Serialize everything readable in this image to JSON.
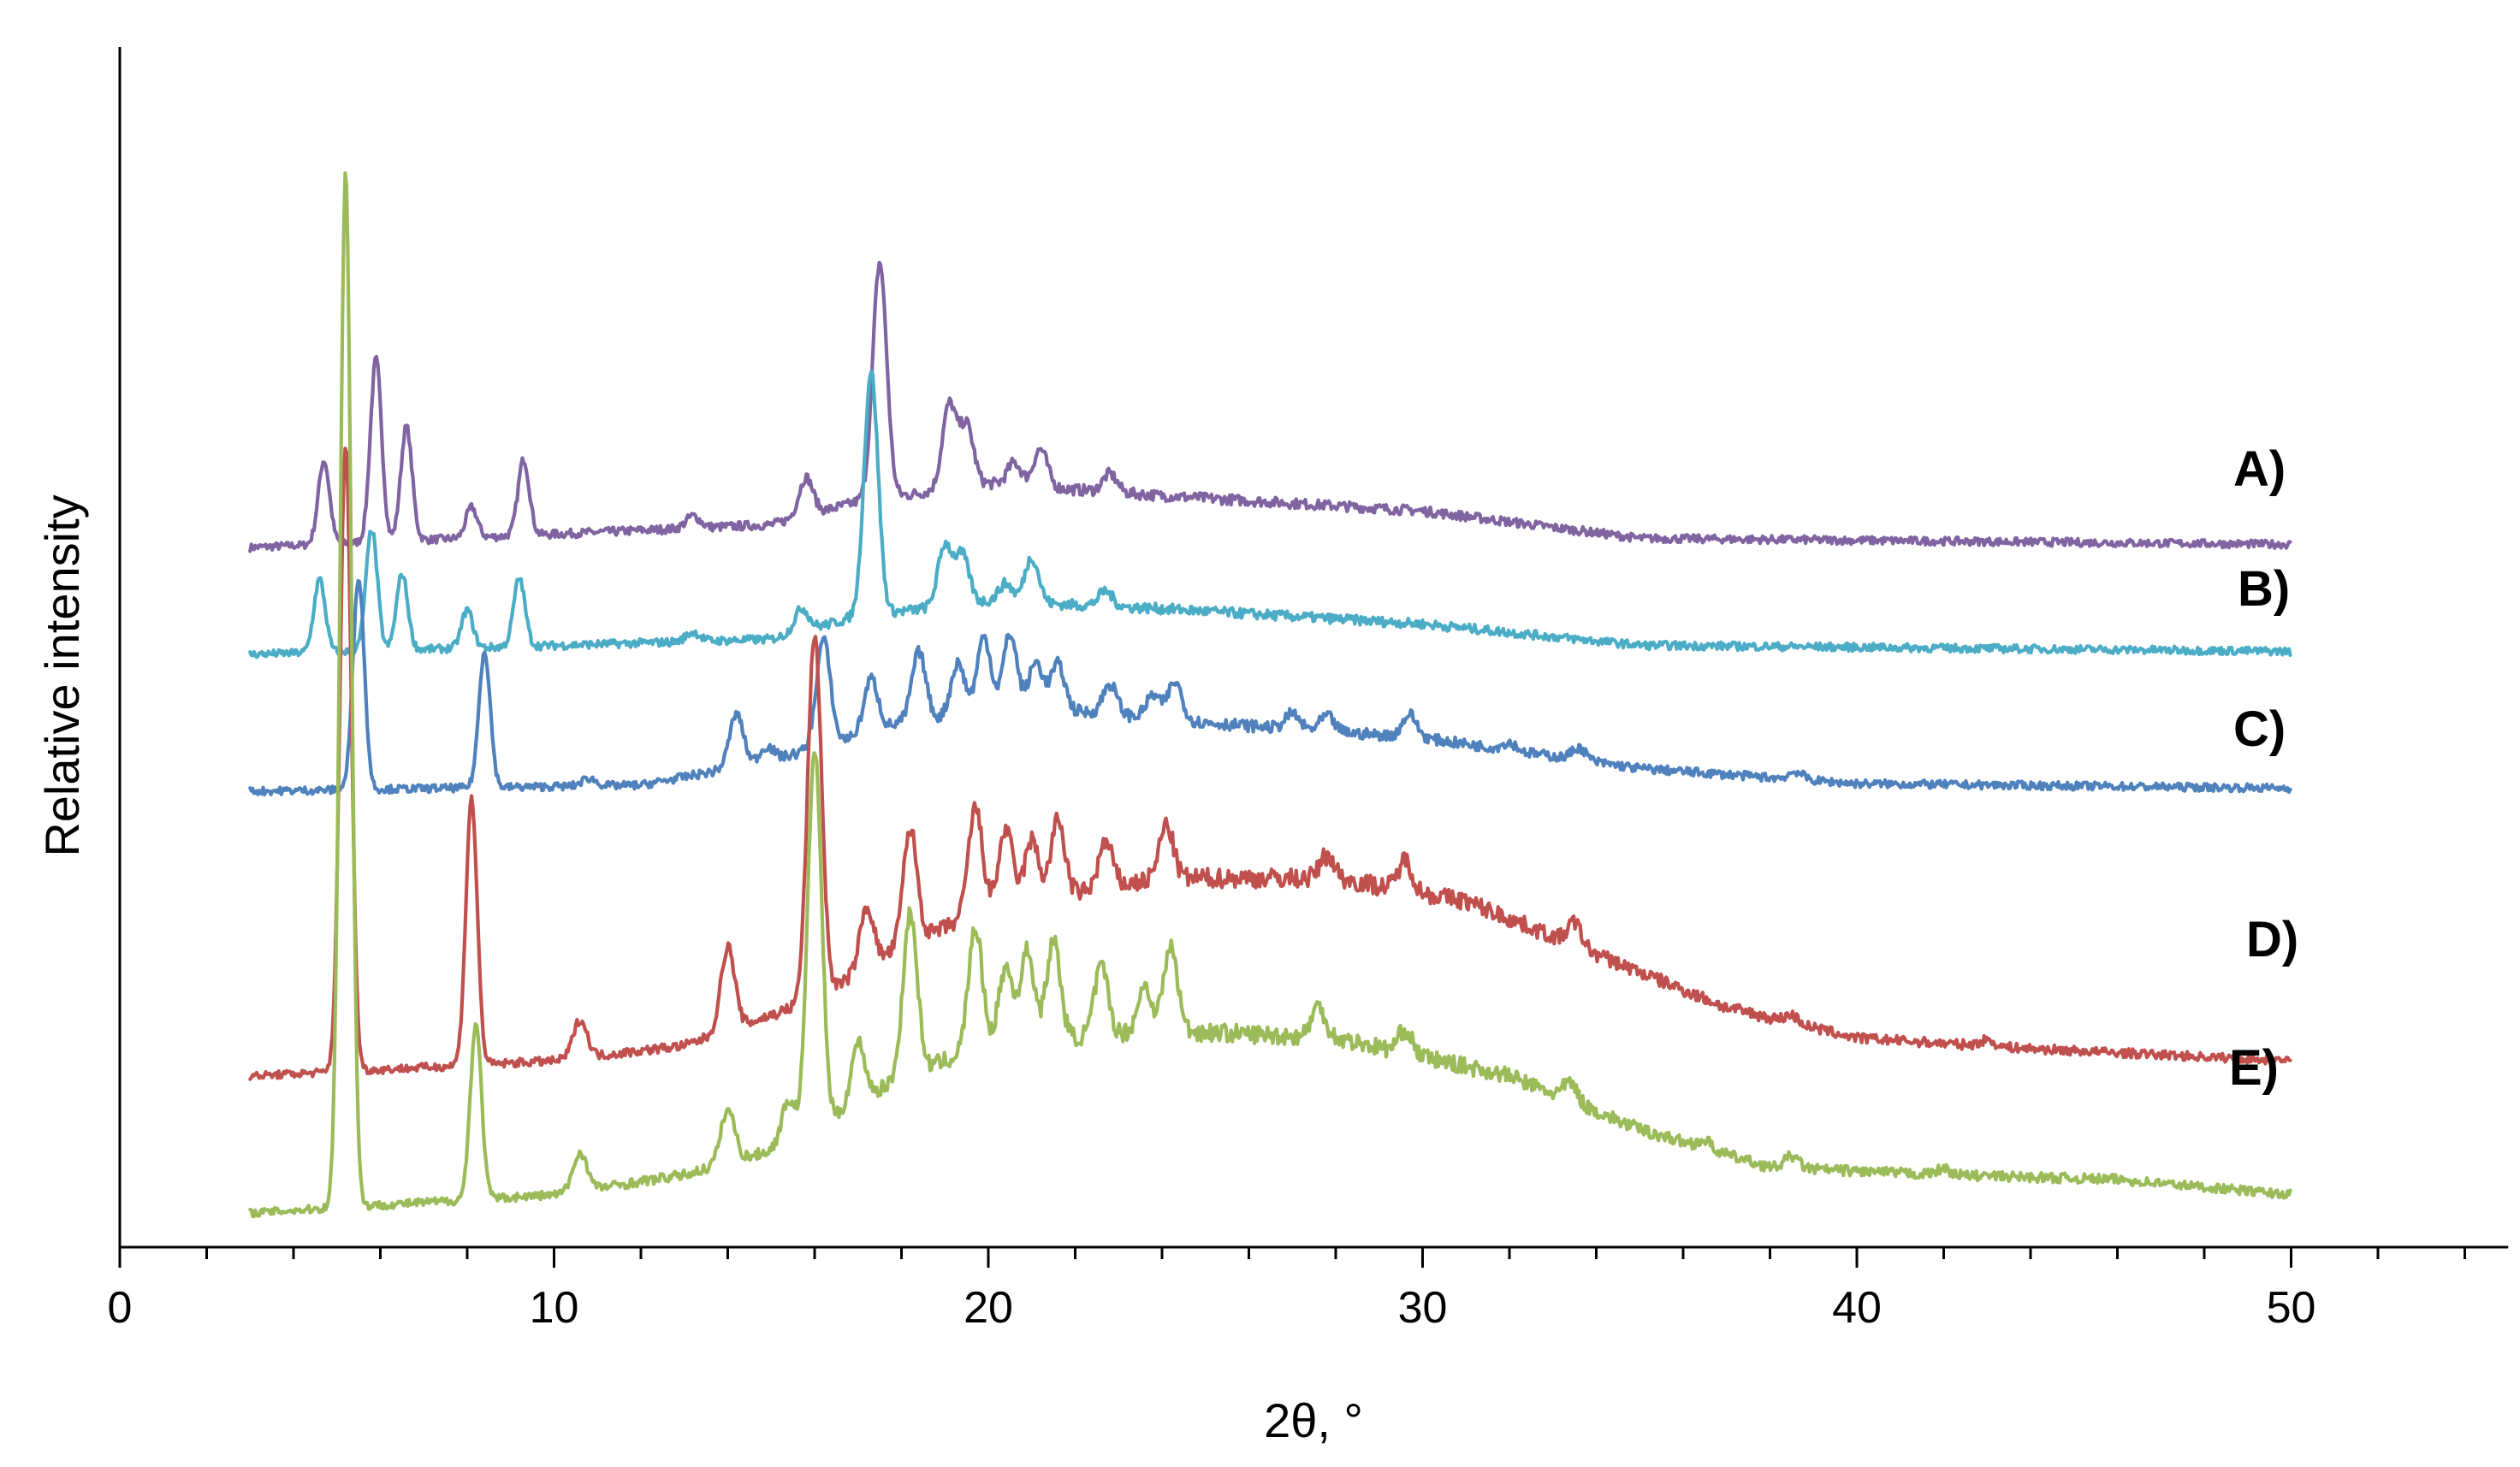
{
  "chart_data": {
    "type": "line",
    "title": "",
    "xlabel": "2θ, °",
    "ylabel": "Relative intensity",
    "xlim": [
      0,
      55
    ],
    "xticks": [
      0,
      10,
      20,
      30,
      40,
      50
    ],
    "xtick_labels": [
      "0",
      "10",
      "20",
      "30",
      "40",
      "50"
    ],
    "y_axis_ticks": false,
    "grid": false,
    "legend": "labels at right end of each trace",
    "series": [
      {
        "name": "A)",
        "color": "#8064a2",
        "x_range": [
          3,
          50
        ],
        "peaks": [
          [
            4.7,
            0.55
          ],
          [
            5.9,
            1.2
          ],
          [
            6.6,
            0.75
          ],
          [
            8.1,
            0.2
          ],
          [
            9.3,
            0.5
          ],
          [
            13.2,
            0.08
          ],
          [
            15.8,
            0.25
          ],
          [
            17.5,
            1.55
          ],
          [
            19.1,
            0.55
          ],
          [
            19.5,
            0.4
          ],
          [
            20.6,
            0.15
          ],
          [
            21.2,
            0.25
          ],
          [
            22.8,
            0.12
          ]
        ],
        "baseline": [
          [
            3,
            0.0
          ],
          [
            15,
            0.15
          ],
          [
            17,
            0.3
          ],
          [
            20,
            0.42
          ],
          [
            24,
            0.34
          ],
          [
            30,
            0.24
          ],
          [
            35,
            0.06
          ],
          [
            50,
            0.02
          ]
        ]
      },
      {
        "name": "B)",
        "color": "#4bacc6",
        "x_range": [
          3,
          50
        ],
        "peaks": [
          [
            4.6,
            0.48
          ],
          [
            5.8,
            0.8
          ],
          [
            6.5,
            0.5
          ],
          [
            8.0,
            0.25
          ],
          [
            9.2,
            0.45
          ],
          [
            13.2,
            0.06
          ],
          [
            15.7,
            0.15
          ],
          [
            17.3,
            1.6
          ],
          [
            19.0,
            0.4
          ],
          [
            19.4,
            0.32
          ],
          [
            20.4,
            0.12
          ],
          [
            21.0,
            0.3
          ],
          [
            22.7,
            0.1
          ]
        ],
        "baseline": [
          [
            3,
            0.0
          ],
          [
            15,
            0.1
          ],
          [
            17,
            0.25
          ],
          [
            20,
            0.35
          ],
          [
            24,
            0.3
          ],
          [
            30,
            0.2
          ],
          [
            35,
            0.06
          ],
          [
            50,
            0.02
          ]
        ]
      },
      {
        "name": "C)",
        "color": "#4f81bd",
        "x_range": [
          3,
          50
        ],
        "peaks": [
          [
            5.5,
            1.4
          ],
          [
            8.4,
            0.9
          ],
          [
            10.8,
            0.05
          ],
          [
            14.2,
            0.35
          ],
          [
            14.9,
            0.1
          ],
          [
            16.2,
            0.7
          ],
          [
            17.3,
            0.35
          ],
          [
            18.4,
            0.45
          ],
          [
            19.3,
            0.35
          ],
          [
            19.9,
            0.5
          ],
          [
            20.5,
            0.5
          ],
          [
            21.1,
            0.3
          ],
          [
            21.6,
            0.3
          ],
          [
            22.8,
            0.2
          ],
          [
            23.8,
            0.15
          ],
          [
            24.3,
            0.25
          ],
          [
            27.0,
            0.1
          ],
          [
            27.8,
            0.1
          ],
          [
            29.7,
            0.15
          ],
          [
            32.0,
            0.05
          ],
          [
            33.6,
            0.08
          ],
          [
            38.6,
            0.05
          ]
        ],
        "baseline": [
          [
            3,
            0.0
          ],
          [
            12,
            0.04
          ],
          [
            15,
            0.2
          ],
          [
            18,
            0.45
          ],
          [
            21,
            0.55
          ],
          [
            25,
            0.45
          ],
          [
            30,
            0.35
          ],
          [
            35,
            0.15
          ],
          [
            40,
            0.05
          ],
          [
            50,
            0.02
          ]
        ]
      },
      {
        "name": "D)",
        "color": "#c0504d",
        "x_range": [
          3,
          50
        ],
        "peaks": [
          [
            5.2,
            4.1
          ],
          [
            8.1,
            1.75
          ],
          [
            10.6,
            0.25
          ],
          [
            14.0,
            0.55
          ],
          [
            16.0,
            2.4
          ],
          [
            17.2,
            0.4
          ],
          [
            18.2,
            0.75
          ],
          [
            19.7,
            0.7
          ],
          [
            20.4,
            0.5
          ],
          [
            21.0,
            0.4
          ],
          [
            21.6,
            0.5
          ],
          [
            22.7,
            0.3
          ],
          [
            24.1,
            0.35
          ],
          [
            27.8,
            0.15
          ],
          [
            29.6,
            0.2
          ],
          [
            33.5,
            0.15
          ],
          [
            38.5,
            0.05
          ],
          [
            43.0,
            0.04
          ]
        ],
        "baseline": [
          [
            3,
            0.0
          ],
          [
            10,
            0.1
          ],
          [
            13,
            0.2
          ],
          [
            16,
            0.5
          ],
          [
            18,
            0.85
          ],
          [
            20,
            1.1
          ],
          [
            24,
            1.3
          ],
          [
            28,
            1.3
          ],
          [
            31,
            1.15
          ],
          [
            34,
            0.8
          ],
          [
            37,
            0.45
          ],
          [
            40,
            0.25
          ],
          [
            44,
            0.18
          ],
          [
            50,
            0.1
          ]
        ]
      },
      {
        "name": "E)",
        "color": "#9bbb59",
        "x_range": [
          3,
          50
        ],
        "peaks": [
          [
            5.2,
            6.8
          ],
          [
            8.2,
            1.15
          ],
          [
            10.6,
            0.25
          ],
          [
            14.0,
            0.35
          ],
          [
            15.4,
            0.3
          ],
          [
            16.0,
            2.5
          ],
          [
            17.0,
            0.4
          ],
          [
            18.2,
            1.05
          ],
          [
            19.7,
            0.8
          ],
          [
            20.4,
            0.5
          ],
          [
            20.9,
            0.6
          ],
          [
            21.5,
            0.65
          ],
          [
            22.6,
            0.45
          ],
          [
            23.6,
            0.3
          ],
          [
            24.2,
            0.55
          ],
          [
            27.6,
            0.2
          ],
          [
            29.6,
            0.15
          ],
          [
            33.4,
            0.12
          ],
          [
            36.5,
            0.05
          ],
          [
            38.5,
            0.08
          ],
          [
            42.0,
            0.04
          ]
        ],
        "baseline": [
          [
            3,
            0.0
          ],
          [
            10,
            0.12
          ],
          [
            13,
            0.25
          ],
          [
            15.5,
            0.45
          ],
          [
            18,
            0.9
          ],
          [
            20,
            1.1
          ],
          [
            24,
            1.2
          ],
          [
            28,
            1.15
          ],
          [
            32,
            0.9
          ],
          [
            35,
            0.55
          ],
          [
            38,
            0.3
          ],
          [
            42,
            0.25
          ],
          [
            46,
            0.22
          ],
          [
            50,
            0.12
          ]
        ]
      }
    ]
  }
}
